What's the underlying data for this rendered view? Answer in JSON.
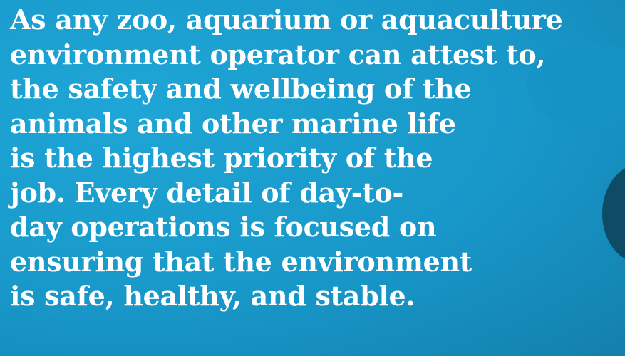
{
  "paragraph": {
    "lines": [
      "As any zoo, aquarium or aquaculture",
      "environment operator can attest to,",
      "the safety and wellbeing of the",
      "animals and other marine life",
      "is the highest priority of the",
      "job. Every detail of day-to-",
      "day operations is focused on",
      "ensuring that the environment",
      "is safe, healthy, and stable."
    ]
  }
}
